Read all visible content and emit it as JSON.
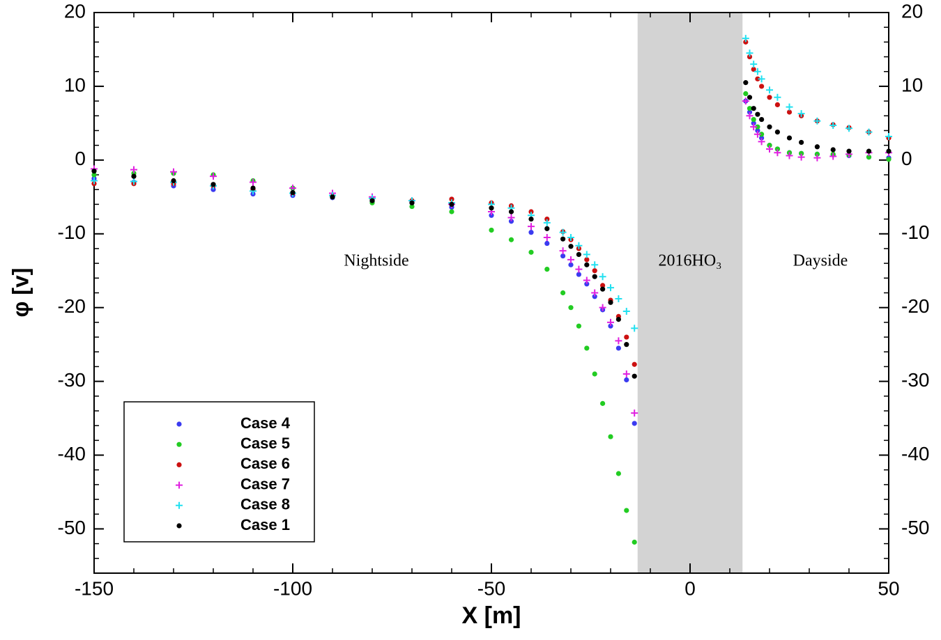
{
  "chart_data": {
    "type": "scatter",
    "xlabel": "X [m]",
    "ylabel": "φ [v]",
    "xlim": [
      -150,
      50
    ],
    "xticks": [
      -150,
      -100,
      -50,
      0,
      50
    ],
    "ylim": [
      -56,
      20
    ],
    "yticks": [
      20,
      10,
      0,
      -10,
      -20,
      -30,
      -40,
      -50
    ],
    "mirror_y_axis": true,
    "shaded_band": [
      -13.2,
      13.2
    ],
    "shaded_color": "#d3d3d3",
    "annotations": [
      "Nightside",
      "2016HO₃",
      "Dayside"
    ],
    "legend": "lower left",
    "x": [
      -150,
      -140,
      -130,
      -120,
      -110,
      -100,
      -90,
      -80,
      -70,
      -60,
      -50,
      -45,
      -40,
      -36,
      -32,
      -30,
      -28,
      -26,
      -24,
      -22,
      -20,
      -18,
      -16,
      -14,
      14,
      15,
      16,
      17,
      18,
      20,
      22,
      25,
      28,
      32,
      36,
      40,
      45,
      50
    ],
    "series": [
      {
        "name": "Case 4",
        "color": "#3b3bf0",
        "marker": "dot",
        "values": [
          -2.5,
          -3,
          -3.5,
          -4,
          -4.6,
          -4.8,
          -5.1,
          -5.6,
          -5.8,
          -6.4,
          -7.5,
          -8.3,
          -9.8,
          -11.3,
          -13,
          -14.2,
          -15.5,
          -16.8,
          -18.5,
          -20.3,
          -22.5,
          -25.5,
          -29.8,
          -35.7,
          8,
          6.5,
          5,
          4,
          3,
          2,
          1.5,
          1,
          0.9,
          0.8,
          0.7,
          0.6,
          0.4,
          0.3
        ]
      },
      {
        "name": "Case 5",
        "color": "#22cc22",
        "marker": "dot",
        "values": [
          -2,
          -1.8,
          -1.8,
          -2,
          -2.8,
          -3.8,
          -5,
          -5.8,
          -6.3,
          -7,
          -9.5,
          -10.8,
          -12.5,
          -14.8,
          -18,
          -20,
          -22.5,
          -25.5,
          -29,
          -33,
          -37.5,
          -42.5,
          -47.5,
          -51.8,
          9,
          7,
          5.5,
          4.5,
          3.5,
          2,
          1.5,
          1,
          0.9,
          0.8,
          0.8,
          0.7,
          0.4,
          0.1
        ]
      },
      {
        "name": "Case 6",
        "color": "#cc1111",
        "marker": "dot",
        "values": [
          -3.2,
          -3.2,
          -3.2,
          -3.5,
          -4,
          -4.5,
          -4.9,
          -5.3,
          -5.5,
          -5.3,
          -5.8,
          -6.2,
          -7,
          -8,
          -9.7,
          -10.8,
          -12,
          -13.5,
          -15,
          -17,
          -19,
          -21.2,
          -24,
          -27.7,
          16,
          14,
          12.3,
          11,
          10,
          8.5,
          7.5,
          6.5,
          6,
          5.3,
          4.8,
          4.4,
          3.8,
          3
        ]
      },
      {
        "name": "Case 7",
        "color": "#e020e0",
        "marker": "plus",
        "values": [
          -1.2,
          -1.3,
          -1.6,
          -2.2,
          -3,
          -3.8,
          -4.5,
          -5,
          -5.5,
          -6,
          -7,
          -7.8,
          -9,
          -10.5,
          -12.3,
          -13.5,
          -14.8,
          -16.3,
          -18,
          -20,
          -22,
          -24.5,
          -29,
          -34.3,
          8,
          6,
          4.5,
          3.5,
          2.5,
          1.5,
          1,
          0.6,
          0.4,
          0.3,
          0.5,
          0.8,
          1,
          1
        ]
      },
      {
        "name": "Case 8",
        "color": "#22e0f0",
        "marker": "plus",
        "values": [
          -2.8,
          -2.9,
          -3,
          -3.5,
          -4.2,
          -4.5,
          -4.8,
          -5.2,
          -5.5,
          -5.8,
          -6,
          -6.5,
          -7.5,
          -8.5,
          -9.8,
          -10.5,
          -11.6,
          -12.8,
          -14.2,
          -15.8,
          -17.3,
          -18.8,
          -20.5,
          -22.8,
          16.5,
          14.5,
          13,
          12,
          11,
          9.5,
          8.5,
          7.2,
          6.3,
          5.3,
          4.7,
          4.3,
          3.8,
          3.2
        ]
      },
      {
        "name": "Case 1",
        "color": "#000000",
        "marker": "dot",
        "values": [
          -1.5,
          -2.2,
          -2.8,
          -3.3,
          -3.8,
          -4.4,
          -5,
          -5.5,
          -5.8,
          -6,
          -6.5,
          -7,
          -8,
          -9.3,
          -10.7,
          -11.7,
          -12.8,
          -14.2,
          -15.8,
          -17.5,
          -19.3,
          -21.6,
          -25,
          -29.3,
          10.5,
          8.5,
          7,
          6.2,
          5.5,
          4.5,
          3.8,
          3,
          2.4,
          1.8,
          1.4,
          1.2,
          1.2,
          1.2
        ]
      }
    ]
  }
}
